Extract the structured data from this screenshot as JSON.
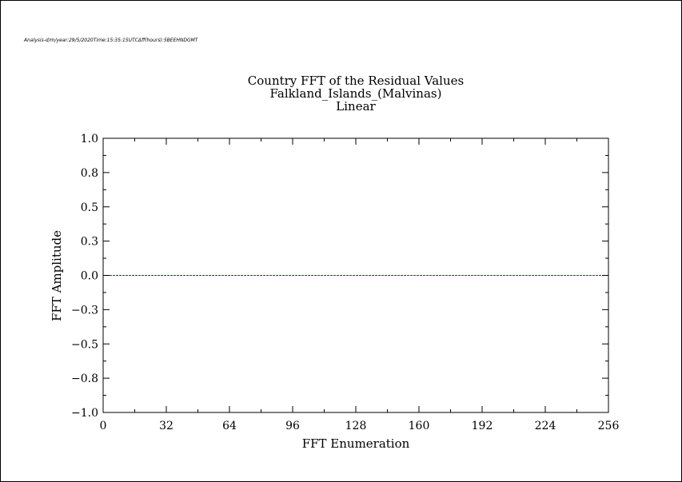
{
  "header_text": "Analysis-d/m/year:29/5/2020Time:15:35:15UTCΔff(hours):5BEEHNDGMT",
  "chart_data": {
    "type": "line",
    "title_lines": [
      "Country FFT of the Residual Values",
      "Falkland_Islands_(Malvinas)",
      "Linear"
    ],
    "xlabel": "FFT Enumeration",
    "ylabel": "FFT Amplitude",
    "xlim": [
      0,
      256
    ],
    "ylim": [
      -1.0,
      1.0
    ],
    "x_ticks": [
      0,
      32,
      64,
      96,
      128,
      160,
      192,
      224,
      256
    ],
    "x_tick_labels": [
      "0",
      "32",
      "64",
      "96",
      "128",
      "160",
      "192",
      "224",
      "256"
    ],
    "y_ticks": [
      1.0,
      0.75,
      0.5,
      0.25,
      0.0,
      -0.25,
      -0.5,
      -0.75,
      -1.0
    ],
    "y_tick_labels": [
      "1.0",
      "0.8",
      "0.5",
      "0.3",
      "0.0",
      "−0.3",
      "−0.5",
      "−0.8",
      "−1.0"
    ],
    "series": [
      {
        "color": "#006400",
        "dashed": true,
        "x": [
          0,
          256
        ],
        "y": [
          0.0,
          0.0
        ]
      }
    ],
    "grid": false,
    "colors": {
      "series": "#006400",
      "axes": "#000000",
      "background": "#ffffff"
    }
  }
}
